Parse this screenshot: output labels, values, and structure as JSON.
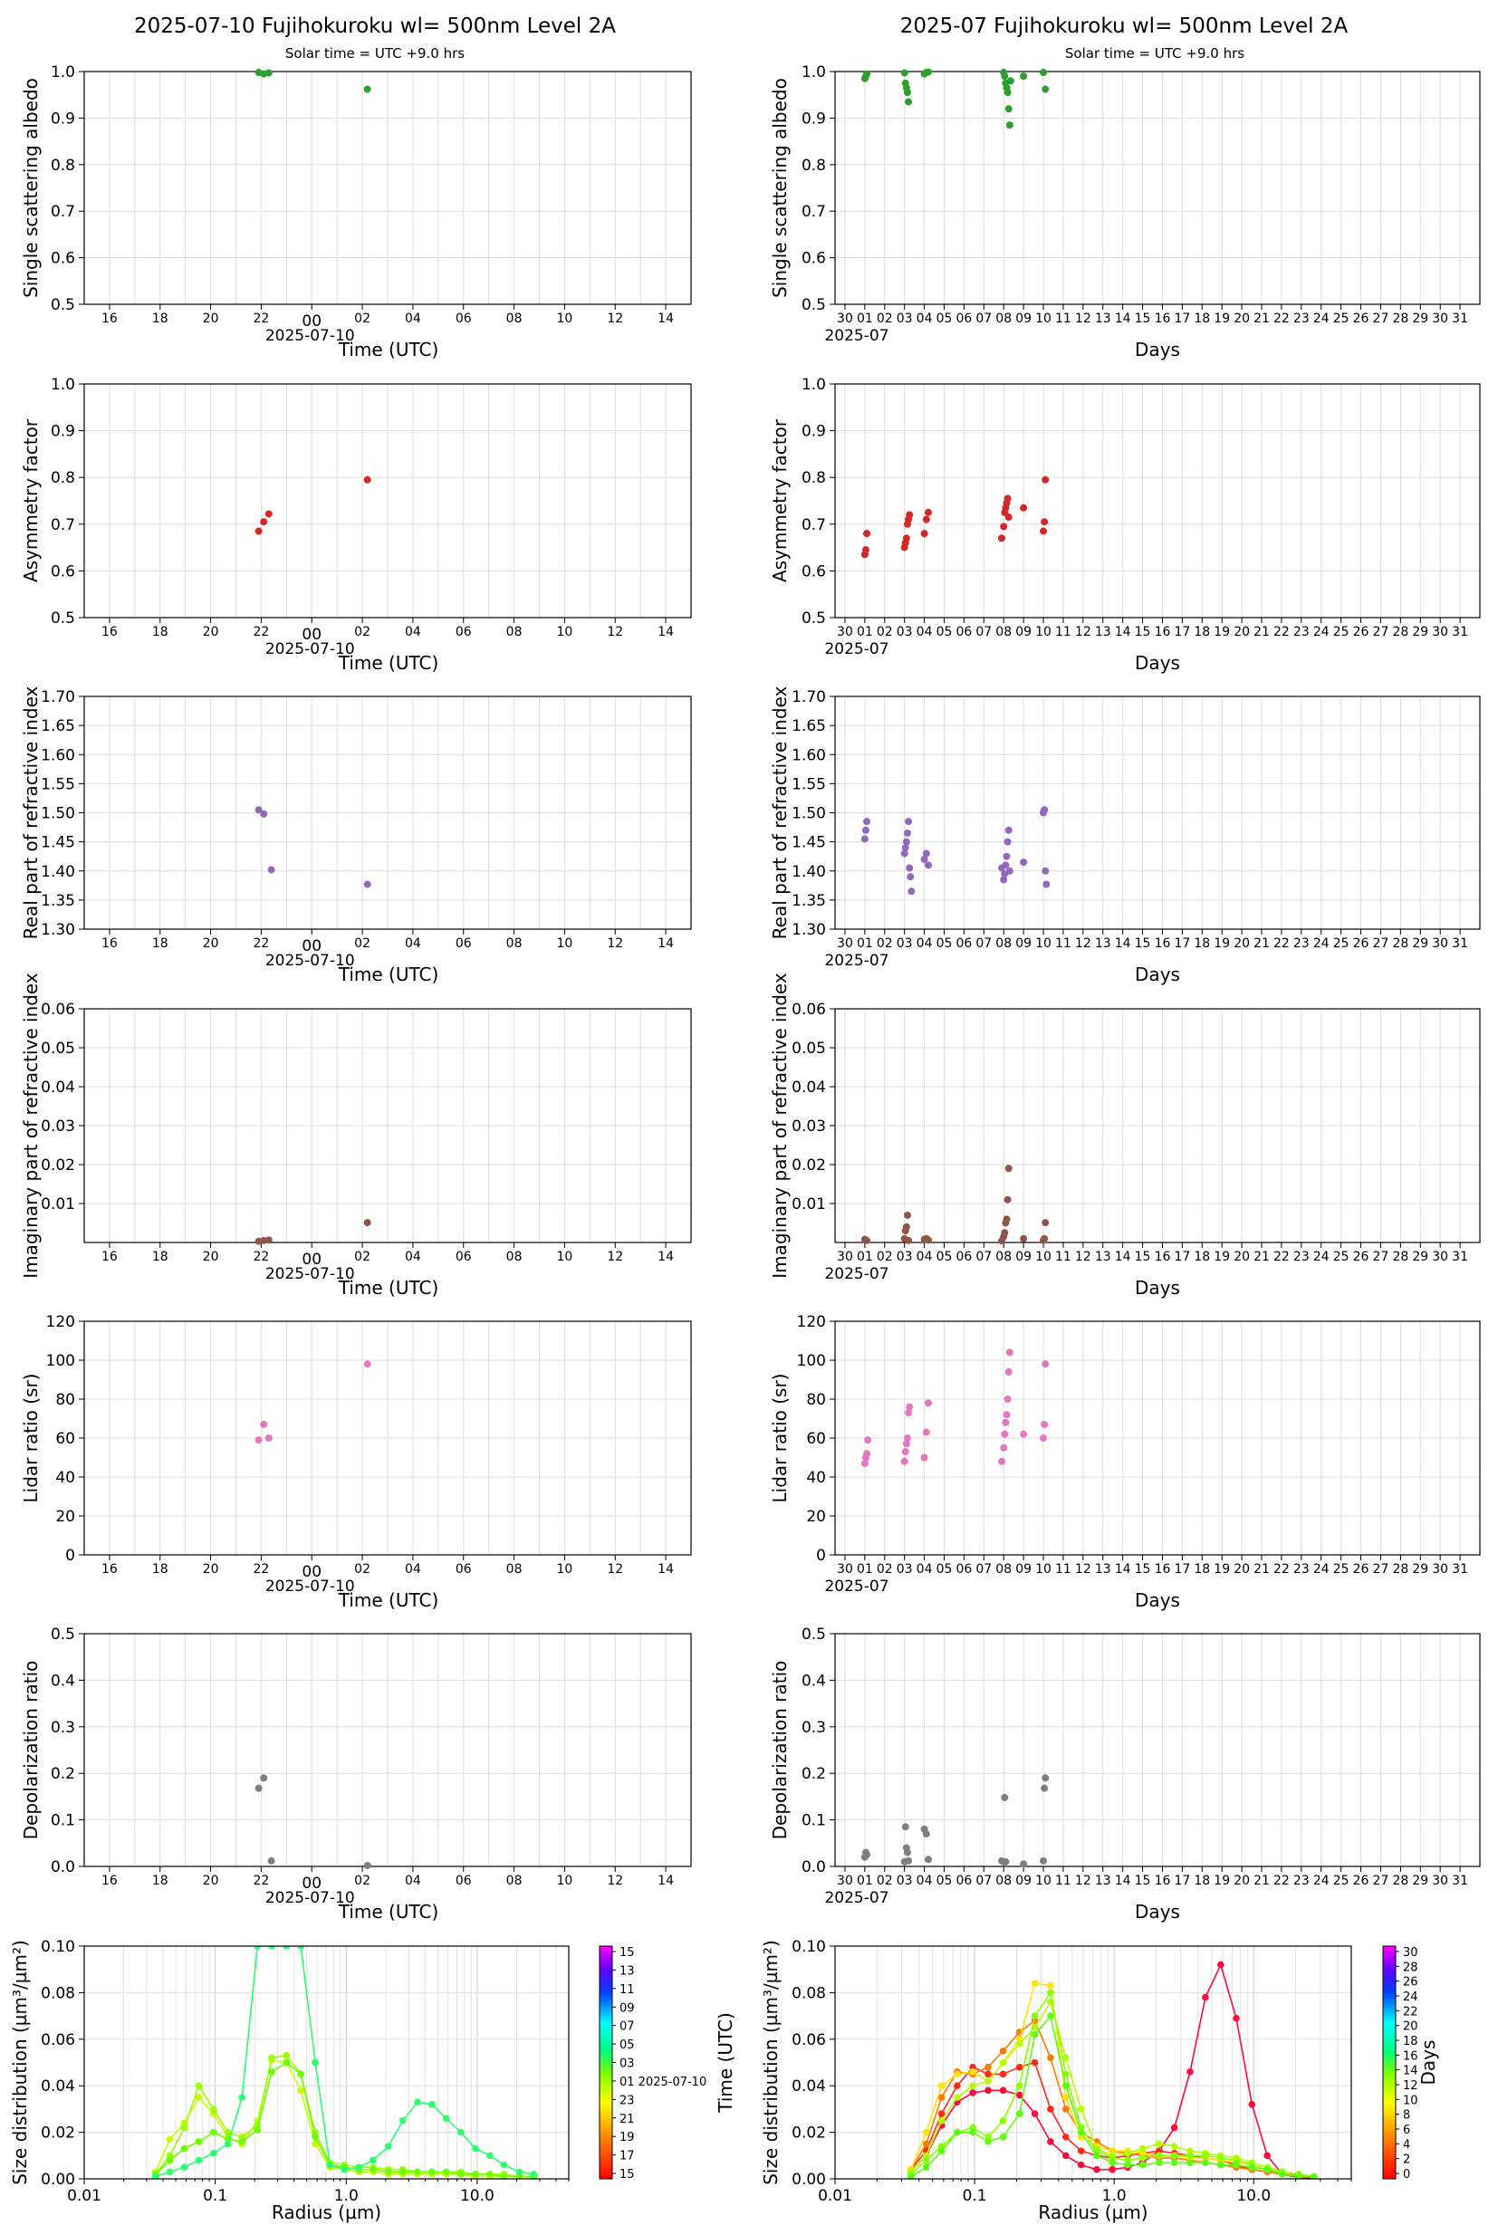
{
  "titles": {
    "left": "2025-07-10  Fujihokuroku  wl= 500nm  Level 2A",
    "right": "2025-07  Fujihokuroku  wl= 500nm  Level 2A",
    "solar_left": "Solar time = UTC +9.0 hrs",
    "solar_right": "Solar time = UTC +9.0 hrs"
  },
  "axes_common": {
    "daily_x_ticks": [
      "16",
      "18",
      "20",
      "22",
      "00",
      "02",
      "04",
      "06",
      "08",
      "10",
      "12",
      "14"
    ],
    "daily_date": "2025-07-10",
    "daily_xlabel": "Time (UTC)",
    "monthly_x_ticks": [
      "30",
      "01",
      "02",
      "03",
      "04",
      "05",
      "06",
      "07",
      "08",
      "09",
      "10",
      "11",
      "12",
      "13",
      "14",
      "15",
      "16",
      "17",
      "18",
      "19",
      "20",
      "21",
      "22",
      "23",
      "24",
      "25",
      "26",
      "27",
      "28",
      "29",
      "30",
      "31"
    ],
    "monthly_month": "2025-07",
    "monthly_xlabel": "Days"
  },
  "colors": {
    "ssa": "#2ca02c",
    "asy": "#d62728",
    "real": "#9467bd",
    "imag": "#8c564b",
    "lidar": "#e377c2",
    "depol": "#7f7f7f"
  },
  "chart_data": [
    {
      "id": "daily-ssa",
      "type": "scatter",
      "ylabel": "Single scattering albedo",
      "ylim": [
        0.5,
        1.0
      ],
      "yticks": [
        "0.5",
        "0.6",
        "0.7",
        "0.8",
        "0.9",
        "1.0"
      ],
      "x_hours": [
        21.9,
        22.1,
        22.3,
        26.2
      ],
      "y": [
        0.998,
        0.995,
        0.997,
        0.962
      ],
      "color_key": "ssa"
    },
    {
      "id": "monthly-ssa",
      "type": "scatter",
      "ylabel": "Single scattering albedo",
      "ylim": [
        0.5,
        1.0
      ],
      "yticks": [
        "0.5",
        "0.6",
        "0.7",
        "0.8",
        "0.9",
        "1.0"
      ],
      "x_days": [
        1.0,
        1.05,
        1.1,
        3.0,
        3.05,
        3.1,
        3.15,
        3.2,
        4.0,
        4.1,
        4.2,
        8.0,
        8.05,
        8.1,
        8.15,
        8.2,
        8.25,
        8.3,
        8.35,
        9.0,
        10.0,
        10.1
      ],
      "y": [
        0.985,
        0.99,
        0.995,
        0.997,
        0.975,
        0.965,
        0.955,
        0.935,
        0.995,
        0.998,
        0.999,
        0.998,
        0.99,
        0.975,
        0.965,
        0.955,
        0.92,
        0.885,
        0.98,
        0.99,
        0.998,
        0.962
      ],
      "color_key": "ssa"
    },
    {
      "id": "daily-asy",
      "type": "scatter",
      "ylabel": "Asymmetry factor",
      "ylim": [
        0.5,
        1.0
      ],
      "yticks": [
        "0.5",
        "0.6",
        "0.7",
        "0.8",
        "0.9",
        "1.0"
      ],
      "x_hours": [
        21.9,
        22.1,
        22.3,
        26.2
      ],
      "y": [
        0.685,
        0.705,
        0.722,
        0.795
      ],
      "color_key": "asy"
    },
    {
      "id": "monthly-asy",
      "type": "scatter",
      "ylabel": "Asymmetry factor",
      "ylim": [
        0.5,
        1.0
      ],
      "yticks": [
        "0.5",
        "0.6",
        "0.7",
        "0.8",
        "0.9",
        "1.0"
      ],
      "x_days": [
        1.0,
        1.05,
        1.1,
        3.0,
        3.05,
        3.1,
        3.15,
        3.2,
        3.25,
        4.0,
        4.1,
        4.2,
        7.9,
        8.0,
        8.05,
        8.1,
        8.15,
        8.2,
        8.25,
        9.0,
        10.0,
        10.05,
        10.1
      ],
      "y": [
        0.635,
        0.645,
        0.68,
        0.65,
        0.66,
        0.67,
        0.7,
        0.71,
        0.72,
        0.68,
        0.71,
        0.725,
        0.67,
        0.695,
        0.725,
        0.735,
        0.745,
        0.755,
        0.715,
        0.735,
        0.685,
        0.705,
        0.795
      ],
      "color_key": "asy"
    },
    {
      "id": "daily-real",
      "type": "scatter",
      "ylabel": "Real part of refractive index",
      "ylim": [
        1.3,
        1.7
      ],
      "yticks": [
        "1.30",
        "1.35",
        "1.40",
        "1.45",
        "1.50",
        "1.55",
        "1.60",
        "1.65",
        "1.70"
      ],
      "x_hours": [
        21.9,
        22.1,
        22.4,
        26.2
      ],
      "y": [
        1.505,
        1.498,
        1.402,
        1.377
      ],
      "color_key": "real"
    },
    {
      "id": "monthly-real",
      "type": "scatter",
      "ylabel": "Real part of refractive index",
      "ylim": [
        1.3,
        1.7
      ],
      "yticks": [
        "1.30",
        "1.35",
        "1.40",
        "1.45",
        "1.50",
        "1.55",
        "1.60",
        "1.65",
        "1.70"
      ],
      "x_days": [
        1.0,
        1.05,
        1.1,
        3.0,
        3.05,
        3.1,
        3.15,
        3.2,
        3.25,
        3.3,
        3.35,
        4.0,
        4.1,
        4.2,
        7.9,
        8.0,
        8.05,
        8.1,
        8.15,
        8.2,
        8.25,
        8.3,
        9.0,
        10.0,
        10.05,
        10.1,
        10.15
      ],
      "y": [
        1.455,
        1.47,
        1.485,
        1.43,
        1.44,
        1.45,
        1.465,
        1.485,
        1.405,
        1.39,
        1.365,
        1.42,
        1.43,
        1.41,
        1.405,
        1.385,
        1.395,
        1.41,
        1.425,
        1.45,
        1.47,
        1.4,
        1.415,
        1.5,
        1.505,
        1.4,
        1.377
      ],
      "color_key": "real"
    },
    {
      "id": "daily-imag",
      "type": "scatter",
      "ylabel": "Imaginary part of refractive index",
      "ylim": [
        0.0,
        0.06
      ],
      "yticks": [
        "0.01",
        "0.02",
        "0.03",
        "0.04",
        "0.05",
        "0.06"
      ],
      "x_hours": [
        21.9,
        22.1,
        22.3,
        26.2
      ],
      "y": [
        0.0003,
        0.0005,
        0.0006,
        0.0051
      ],
      "color_key": "imag"
    },
    {
      "id": "monthly-imag",
      "type": "scatter",
      "ylabel": "Imaginary part of refractive index",
      "ylim": [
        0.0,
        0.06
      ],
      "yticks": [
        "0.01",
        "0.02",
        "0.03",
        "0.04",
        "0.05",
        "0.06"
      ],
      "x_days": [
        1.0,
        1.1,
        3.0,
        3.05,
        3.1,
        3.15,
        3.2,
        4.0,
        4.1,
        4.2,
        7.9,
        8.0,
        8.05,
        8.1,
        8.15,
        8.2,
        8.25,
        9.0,
        10.0,
        10.05,
        10.1
      ],
      "y": [
        0.0008,
        0.0005,
        0.001,
        0.003,
        0.004,
        0.007,
        0.0005,
        0.0008,
        0.001,
        0.0006,
        0.0004,
        0.0015,
        0.0025,
        0.005,
        0.006,
        0.011,
        0.019,
        0.001,
        0.0005,
        0.001,
        0.0051
      ],
      "color_key": "imag"
    },
    {
      "id": "daily-lidar",
      "type": "scatter",
      "ylabel": "Lidar ratio (sr)",
      "ylim": [
        0,
        120
      ],
      "yticks": [
        "0",
        "20",
        "40",
        "60",
        "80",
        "100",
        "120"
      ],
      "x_hours": [
        21.9,
        22.1,
        22.3,
        26.2
      ],
      "y": [
        59,
        67,
        60,
        98
      ],
      "color_key": "lidar"
    },
    {
      "id": "monthly-lidar",
      "type": "scatter",
      "ylabel": "Lidar ratio (sr)",
      "ylim": [
        0,
        120
      ],
      "yticks": [
        "0",
        "20",
        "40",
        "60",
        "80",
        "100",
        "120"
      ],
      "x_days": [
        1.0,
        1.05,
        1.1,
        1.15,
        3.0,
        3.05,
        3.1,
        3.15,
        3.2,
        3.25,
        4.0,
        4.1,
        4.2,
        7.9,
        8.0,
        8.05,
        8.1,
        8.15,
        8.2,
        8.25,
        8.3,
        9.0,
        10.0,
        10.05,
        10.1
      ],
      "y": [
        47,
        50,
        52,
        59,
        48,
        53,
        57,
        60,
        73,
        76,
        50,
        63,
        78,
        48,
        55,
        62,
        68,
        72,
        80,
        94,
        104,
        62,
        60,
        67,
        98
      ],
      "color_key": "lidar"
    },
    {
      "id": "daily-depol",
      "type": "scatter",
      "ylabel": "Depolarization ratio",
      "ylim": [
        0.0,
        0.5
      ],
      "yticks": [
        "0.0",
        "0.1",
        "0.2",
        "0.3",
        "0.4",
        "0.5"
      ],
      "x_hours": [
        21.9,
        22.1,
        22.4,
        26.2
      ],
      "y": [
        0.168,
        0.19,
        0.012,
        0.002
      ],
      "color_key": "depol"
    },
    {
      "id": "monthly-depol",
      "type": "scatter",
      "ylabel": "Depolarization ratio",
      "ylim": [
        0.0,
        0.5
      ],
      "yticks": [
        "0.0",
        "0.1",
        "0.2",
        "0.3",
        "0.4",
        "0.5"
      ],
      "x_days": [
        1.0,
        1.05,
        1.1,
        3.0,
        3.05,
        3.1,
        3.15,
        3.2,
        4.0,
        4.1,
        4.2,
        7.9,
        8.0,
        8.05,
        8.1,
        9.0,
        10.0,
        10.05,
        10.1
      ],
      "y": [
        0.02,
        0.03,
        0.025,
        0.01,
        0.085,
        0.04,
        0.03,
        0.012,
        0.08,
        0.07,
        0.015,
        0.012,
        0.01,
        0.148,
        0.01,
        0.005,
        0.012,
        0.168,
        0.19
      ],
      "color_key": "depol"
    },
    {
      "id": "daily-size",
      "type": "line",
      "xscale": "log",
      "xlim": [
        0.01,
        50
      ],
      "ylim": [
        0,
        0.1
      ],
      "xticks": [
        "0.01",
        "0.1",
        "1.0",
        "10.0"
      ],
      "yticks": [
        "0.00",
        "0.02",
        "0.04",
        "0.06",
        "0.08",
        "0.10"
      ],
      "xlabel": "Radius (µm)",
      "ylabel": "Size distribution (µm³/µm²)",
      "colorbar_label": "Time (UTC)",
      "colorbar_ticks": [
        "15",
        "17",
        "19",
        "21",
        "23",
        "01 2025-07-10",
        "03",
        "05",
        "07",
        "09",
        "11",
        "13",
        "15"
      ],
      "radius": [
        0.035,
        0.045,
        0.058,
        0.075,
        0.097,
        0.125,
        0.16,
        0.21,
        0.27,
        0.35,
        0.45,
        0.58,
        0.75,
        0.97,
        1.25,
        1.6,
        2.1,
        2.7,
        3.5,
        4.5,
        5.8,
        7.5,
        9.7,
        12.5,
        16,
        21,
        27
      ],
      "series": [
        {
          "values": [
            0.003,
            0.017,
            0.024,
            0.035,
            0.028,
            0.018,
            0.015,
            0.025,
            0.051,
            0.05,
            0.038,
            0.015,
            0.005,
            0.004,
            0.003,
            0.003,
            0.002,
            0.002,
            0.002,
            0.002,
            0.002,
            0.002,
            0.001,
            0.001,
            0.001,
            0.001,
            0.0005
          ],
          "color": "#c8ff00"
        },
        {
          "values": [
            0.002,
            0.01,
            0.022,
            0.04,
            0.03,
            0.02,
            0.018,
            0.023,
            0.052,
            0.053,
            0.045,
            0.02,
            0.007,
            0.006,
            0.005,
            0.005,
            0.004,
            0.004,
            0.003,
            0.003,
            0.003,
            0.003,
            0.002,
            0.002,
            0.002,
            0.001,
            0.001
          ],
          "color": "#9cff00"
        },
        {
          "values": [
            0.002,
            0.008,
            0.013,
            0.016,
            0.02,
            0.017,
            0.016,
            0.021,
            0.046,
            0.05,
            0.045,
            0.018,
            0.006,
            0.005,
            0.004,
            0.004,
            0.003,
            0.003,
            0.003,
            0.003,
            0.003,
            0.002,
            0.002,
            0.002,
            0.001,
            0.001,
            0.001
          ],
          "color": "#6cff00"
        },
        {
          "values": [
            0.001,
            0.003,
            0.005,
            0.008,
            0.011,
            0.015,
            0.035,
            0.1,
            0.1,
            0.1,
            0.1,
            0.05,
            0.006,
            0.004,
            0.005,
            0.008,
            0.014,
            0.025,
            0.033,
            0.032,
            0.026,
            0.02,
            0.013,
            0.01,
            0.006,
            0.003,
            0.002
          ],
          "color": "#2cff70"
        }
      ]
    },
    {
      "id": "monthly-size",
      "type": "line",
      "xscale": "log",
      "xlim": [
        0.01,
        50
      ],
      "ylim": [
        0,
        0.1
      ],
      "xticks": [
        "0.01",
        "0.1",
        "1.0",
        "10.0"
      ],
      "yticks": [
        "0.00",
        "0.02",
        "0.04",
        "0.06",
        "0.08",
        "0.10"
      ],
      "xlabel": "Radius (µm)",
      "ylabel": "Size distribution (µm³/µm²)",
      "colorbar_label": "Days",
      "colorbar_ticks": [
        "0",
        "2",
        "4",
        "6",
        "8",
        "10",
        "12",
        "14",
        "16",
        "18",
        "20",
        "22",
        "24",
        "26",
        "28",
        "30"
      ],
      "radius": [
        0.035,
        0.045,
        0.058,
        0.075,
        0.097,
        0.125,
        0.16,
        0.21,
        0.27,
        0.35,
        0.45,
        0.58,
        0.75,
        0.97,
        1.25,
        1.6,
        2.1,
        2.7,
        3.5,
        4.5,
        5.8,
        7.5,
        9.7,
        12.5,
        16,
        21,
        27
      ],
      "series": [
        {
          "values": [
            0.003,
            0.01,
            0.023,
            0.033,
            0.037,
            0.038,
            0.038,
            0.036,
            0.028,
            0.016,
            0.01,
            0.006,
            0.004,
            0.004,
            0.005,
            0.007,
            0.012,
            0.022,
            0.046,
            0.078,
            0.092,
            0.069,
            0.032,
            0.01,
            0.002,
            0.0005,
            0.0002
          ],
          "color": "#ff0a3c"
        },
        {
          "values": [
            0.004,
            0.012,
            0.028,
            0.04,
            0.048,
            0.045,
            0.045,
            0.048,
            0.05,
            0.03,
            0.018,
            0.012,
            0.01,
            0.009,
            0.01,
            0.011,
            0.012,
            0.011,
            0.01,
            0.009,
            0.008,
            0.006,
            0.004,
            0.003,
            0.002,
            0.001,
            0.001
          ],
          "color": "#ff2a1a"
        },
        {
          "values": [
            0.004,
            0.015,
            0.035,
            0.046,
            0.045,
            0.048,
            0.055,
            0.063,
            0.068,
            0.052,
            0.03,
            0.02,
            0.016,
            0.012,
            0.011,
            0.01,
            0.009,
            0.009,
            0.008,
            0.007,
            0.006,
            0.005,
            0.004,
            0.003,
            0.002,
            0.0015,
            0.001
          ],
          "color": "#ff7a00"
        },
        {
          "values": [
            0.004,
            0.02,
            0.04,
            0.045,
            0.046,
            0.042,
            0.05,
            0.06,
            0.084,
            0.083,
            0.035,
            0.018,
            0.014,
            0.012,
            0.012,
            0.011,
            0.01,
            0.01,
            0.009,
            0.009,
            0.008,
            0.007,
            0.006,
            0.004,
            0.003,
            0.002,
            0.001
          ],
          "color": "#ffe400"
        },
        {
          "values": [
            0.003,
            0.01,
            0.025,
            0.035,
            0.04,
            0.042,
            0.05,
            0.058,
            0.065,
            0.076,
            0.052,
            0.03,
            0.013,
            0.01,
            0.011,
            0.013,
            0.015,
            0.014,
            0.012,
            0.011,
            0.01,
            0.009,
            0.007,
            0.005,
            0.003,
            0.002,
            0.001
          ],
          "color": "#b4ff00"
        },
        {
          "values": [
            0.002,
            0.008,
            0.014,
            0.02,
            0.022,
            0.018,
            0.025,
            0.04,
            0.07,
            0.08,
            0.045,
            0.022,
            0.012,
            0.009,
            0.008,
            0.009,
            0.01,
            0.01,
            0.01,
            0.01,
            0.009,
            0.008,
            0.006,
            0.004,
            0.003,
            0.002,
            0.001
          ],
          "color": "#8cff00"
        },
        {
          "values": [
            0.001,
            0.005,
            0.012,
            0.02,
            0.02,
            0.016,
            0.018,
            0.028,
            0.062,
            0.07,
            0.04,
            0.02,
            0.01,
            0.007,
            0.006,
            0.006,
            0.007,
            0.007,
            0.007,
            0.007,
            0.006,
            0.006,
            0.005,
            0.004,
            0.002,
            0.001,
            0.0008
          ],
          "color": "#5cff10"
        }
      ]
    }
  ]
}
